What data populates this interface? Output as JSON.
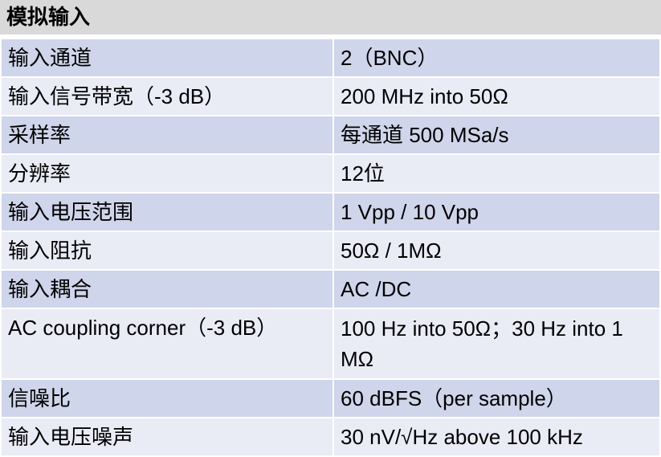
{
  "title": "模拟输入",
  "colors": {
    "header_bg": "#d9d9d9",
    "row_dark": "#cfd5ea",
    "row_light": "#e9ebf5"
  },
  "rows": [
    {
      "label": "输入通道",
      "value": "2（BNC）"
    },
    {
      "label": "输入信号带宽（-3 dB）",
      "value": "200 MHz into 50Ω"
    },
    {
      "label": "采样率",
      "value": "每通道 500 MSa/s"
    },
    {
      "label": "分辨率",
      "value": "12位"
    },
    {
      "label": "输入电压范围",
      "value": "1 Vpp / 10 Vpp"
    },
    {
      "label": "输入阻抗",
      "value": "50Ω / 1MΩ"
    },
    {
      "label": "输入耦合",
      "value": "AC /DC"
    },
    {
      "label": "AC coupling corner（-3 dB）",
      "value": "100 Hz into 50Ω；30 Hz into 1 MΩ"
    },
    {
      "label": "信噪比",
      "value": "60 dBFS（per sample）"
    },
    {
      "label": "输入电压噪声",
      "value": "30 nV/√Hz above 100 kHz"
    }
  ]
}
